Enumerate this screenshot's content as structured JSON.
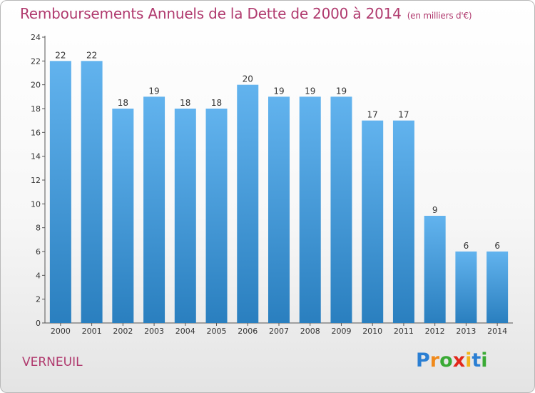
{
  "title": "Remboursements Annuels de la Dette de 2000 à 2014",
  "unit": "(en milliers d'€)",
  "commune": "VERNEUIL",
  "logo": {
    "letters": [
      "P",
      "r",
      "o",
      "x",
      "i",
      "t",
      "i"
    ],
    "colors": [
      "#2b7fd3",
      "#f08a1c",
      "#3aaa35",
      "#e2281b",
      "#f3b41b",
      "#2b7fd3",
      "#3aaa35"
    ]
  },
  "colors": {
    "bar_light": "#62b3ee",
    "bar_dark": "#2a7fbf",
    "title": "#b03a6e"
  },
  "chart_data": {
    "type": "bar",
    "title": "Remboursements Annuels de la Dette de 2000 à 2014",
    "xlabel": "",
    "ylabel": "",
    "categories": [
      "2000",
      "2001",
      "2002",
      "2003",
      "2004",
      "2005",
      "2006",
      "2007",
      "2008",
      "2009",
      "2010",
      "2011",
      "2012",
      "2013",
      "2014"
    ],
    "values": [
      22,
      22,
      18,
      19,
      18,
      18,
      20,
      19,
      19,
      19,
      17,
      17,
      9,
      6,
      6
    ],
    "ylim": [
      0,
      24
    ],
    "yticks": [
      0,
      2,
      4,
      6,
      8,
      10,
      12,
      14,
      16,
      18,
      20,
      22,
      24
    ],
    "grid": false,
    "legend": "none"
  }
}
